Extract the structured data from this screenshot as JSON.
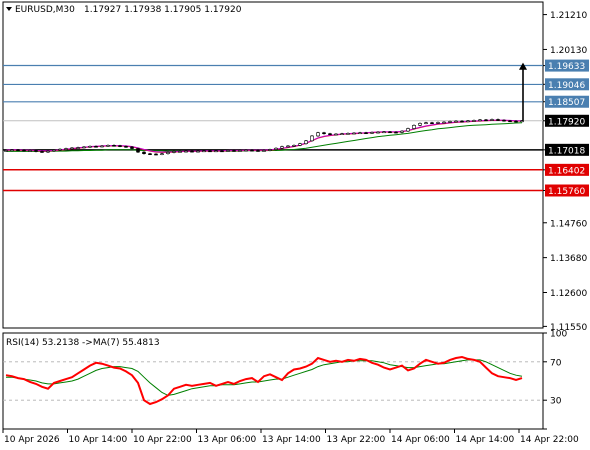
{
  "header": {
    "symbol": "EURUSD,M30",
    "ohlc": "1.17927 1.17938 1.17905 1.17920"
  },
  "rsi_header": "RSI(14) 53.2138   ->MA(7) 55.4813",
  "colors": {
    "up": "#000000",
    "fast_ma": "#c800c8",
    "slow_ma": "#d42020",
    "long_ma": "#008000",
    "resistance": "#4a7fb0",
    "support": "#e00000",
    "pivot": "#000000",
    "rsi": "#ff0000",
    "rsi_ma": "#008000",
    "current_price_badge": "#000000"
  },
  "chart_data": [
    {
      "type": "line",
      "name": "price",
      "ylim": [
        1.115,
        1.216
      ],
      "y_ticks": [
        1.2121,
        1.2013,
        1.1963,
        1.1905,
        1.1851,
        1.1792,
        1.1702,
        1.164,
        1.1576,
        1.1476,
        1.1368,
        1.126,
        1.1155
      ],
      "y_tick_labels": [
        "1.21210",
        "1.20130",
        "1.19633",
        "1.19046",
        "1.18507",
        "1.17920",
        "1.17018",
        "1.16402",
        "1.15760",
        "1.14760",
        "1.13680",
        "1.12600",
        "1.11550"
      ],
      "highlighted_levels": [
        {
          "value": 1.19633,
          "label": "1.19633",
          "kind": "resistance"
        },
        {
          "value": 1.19046,
          "label": "1.19046",
          "kind": "resistance"
        },
        {
          "value": 1.18507,
          "label": "1.18507",
          "kind": "resistance"
        },
        {
          "value": 1.1792,
          "label": "1.17920",
          "kind": "current"
        },
        {
          "value": 1.17018,
          "label": "1.17018",
          "kind": "pivot"
        },
        {
          "value": 1.16402,
          "label": "1.16402",
          "kind": "support"
        },
        {
          "value": 1.1576,
          "label": "1.15760",
          "kind": "support"
        }
      ],
      "x_labels": [
        "10 Apr 2026",
        "10 Apr 14:00",
        "10 Apr 22:00",
        "13 Apr 06:00",
        "13 Apr 14:00",
        "13 Apr 22:00",
        "14 Apr 06:00",
        "14 Apr 14:00",
        "14 Apr 22:00"
      ],
      "close": [
        1.17,
        1.1702,
        1.1701,
        1.1699,
        1.17,
        1.1697,
        1.1695,
        1.1698,
        1.1701,
        1.1704,
        1.1706,
        1.1708,
        1.1709,
        1.1711,
        1.1713,
        1.1712,
        1.1714,
        1.1716,
        1.1715,
        1.1713,
        1.1711,
        1.1706,
        1.1695,
        1.169,
        1.1689,
        1.1688,
        1.169,
        1.1694,
        1.1697,
        1.1697,
        1.1698,
        1.1697,
        1.1698,
        1.1699,
        1.1698,
        1.1699,
        1.1698,
        1.17,
        1.1699,
        1.17,
        1.1701,
        1.17,
        1.1699,
        1.17,
        1.1703,
        1.1707,
        1.1712,
        1.1714,
        1.1716,
        1.1721,
        1.173,
        1.1745,
        1.1755,
        1.1752,
        1.175,
        1.1751,
        1.1752,
        1.1753,
        1.1754,
        1.1755,
        1.1754,
        1.1756,
        1.1757,
        1.1758,
        1.1757,
        1.1756,
        1.176,
        1.1768,
        1.1778,
        1.1784,
        1.1786,
        1.1785,
        1.1787,
        1.1788,
        1.179,
        1.1791,
        1.179,
        1.1792,
        1.1793,
        1.1795,
        1.1794,
        1.1796,
        1.1794,
        1.1792,
        1.1791,
        1.179,
        1.1792
      ],
      "fast_ma": [
        1.17,
        1.1701,
        1.1701,
        1.17,
        1.17,
        1.1699,
        1.1698,
        1.1698,
        1.1699,
        1.1701,
        1.1703,
        1.1705,
        1.1707,
        1.1709,
        1.1711,
        1.1712,
        1.1713,
        1.1714,
        1.1714,
        1.1714,
        1.1713,
        1.1711,
        1.1707,
        1.1702,
        1.1698,
        1.1695,
        1.1694,
        1.1694,
        1.1695,
        1.1696,
        1.1697,
        1.1697,
        1.1697,
        1.1698,
        1.1698,
        1.1698,
        1.1698,
        1.1699,
        1.1699,
        1.1699,
        1.17,
        1.17,
        1.17,
        1.17,
        1.1701,
        1.1703,
        1.1706,
        1.1709,
        1.1712,
        1.1716,
        1.1722,
        1.173,
        1.1738,
        1.1743,
        1.1746,
        1.1748,
        1.175,
        1.1751,
        1.1752,
        1.1753,
        1.1754,
        1.1755,
        1.1756,
        1.1757,
        1.1757,
        1.1757,
        1.1758,
        1.1761,
        1.1766,
        1.1771,
        1.1775,
        1.1778,
        1.1781,
        1.1783,
        1.1785,
        1.1787,
        1.1788,
        1.1789,
        1.179,
        1.1791,
        1.1792,
        1.1793,
        1.1793,
        1.1793,
        1.1792,
        1.1791,
        1.1791
      ],
      "long_ma": [
        1.1697,
        1.1697,
        1.1697,
        1.1697,
        1.1697,
        1.1697,
        1.1697,
        1.1697,
        1.1698,
        1.1698,
        1.1698,
        1.1699,
        1.1699,
        1.17,
        1.17,
        1.1701,
        1.1701,
        1.1702,
        1.1702,
        1.1702,
        1.1702,
        1.1702,
        1.1701,
        1.17,
        1.17,
        1.1699,
        1.1699,
        1.1698,
        1.1698,
        1.1698,
        1.1698,
        1.1698,
        1.1698,
        1.1698,
        1.1698,
        1.1698,
        1.1698,
        1.1698,
        1.1698,
        1.1698,
        1.1699,
        1.1699,
        1.1699,
        1.1699,
        1.17,
        1.17,
        1.1701,
        1.1702,
        1.1703,
        1.1705,
        1.1707,
        1.171,
        1.1713,
        1.1716,
        1.1719,
        1.1722,
        1.1725,
        1.1728,
        1.1731,
        1.1734,
        1.1737,
        1.174,
        1.1743,
        1.1745,
        1.1747,
        1.1749,
        1.1751,
        1.1753,
        1.1756,
        1.1759,
        1.1762,
        1.1764,
        1.1767,
        1.1769,
        1.1771,
        1.1773,
        1.1775,
        1.1777,
        1.1778,
        1.1779,
        1.178,
        1.1781,
        1.1782,
        1.1783,
        1.1784,
        1.1785,
        1.1786
      ]
    },
    {
      "type": "line",
      "name": "RSI(14)",
      "ylim": [
        0,
        100
      ],
      "y_ticks": [
        100,
        70,
        30,
        0
      ],
      "y_tick_labels": [
        "100",
        "70",
        "30",
        "0"
      ],
      "levels": [
        70,
        30
      ],
      "rsi": [
        56,
        55,
        53,
        52,
        49,
        47,
        44,
        42,
        48,
        50,
        52,
        54,
        58,
        62,
        66,
        69,
        68,
        66,
        64,
        63,
        60,
        56,
        48,
        30,
        26,
        28,
        31,
        35,
        42,
        44,
        46,
        45,
        46,
        47,
        48,
        45,
        47,
        49,
        47,
        50,
        52,
        53,
        49,
        55,
        57,
        54,
        51,
        58,
        62,
        63,
        65,
        68,
        74,
        72,
        70,
        71,
        70,
        72,
        71,
        73,
        72,
        69,
        67,
        64,
        62,
        64,
        66,
        61,
        63,
        68,
        72,
        70,
        68,
        69,
        72,
        74,
        75,
        73,
        72,
        70,
        64,
        58,
        55,
        54,
        53,
        51,
        53
      ],
      "rsi_ma": [
        54,
        54,
        53,
        52,
        51,
        50,
        48,
        47,
        47,
        48,
        49,
        50,
        52,
        55,
        58,
        61,
        63,
        64,
        65,
        65,
        64,
        63,
        60,
        54,
        48,
        43,
        38,
        35,
        36,
        38,
        40,
        42,
        43,
        44,
        45,
        45,
        46,
        46,
        46,
        47,
        48,
        49,
        49,
        50,
        51,
        52,
        52,
        54,
        56,
        58,
        60,
        62,
        65,
        67,
        68,
        69,
        70,
        70,
        71,
        71,
        71,
        71,
        70,
        69,
        67,
        66,
        65,
        64,
        64,
        65,
        66,
        67,
        68,
        68,
        69,
        70,
        71,
        72,
        72,
        72,
        70,
        67,
        64,
        61,
        58,
        56,
        55
      ]
    }
  ]
}
